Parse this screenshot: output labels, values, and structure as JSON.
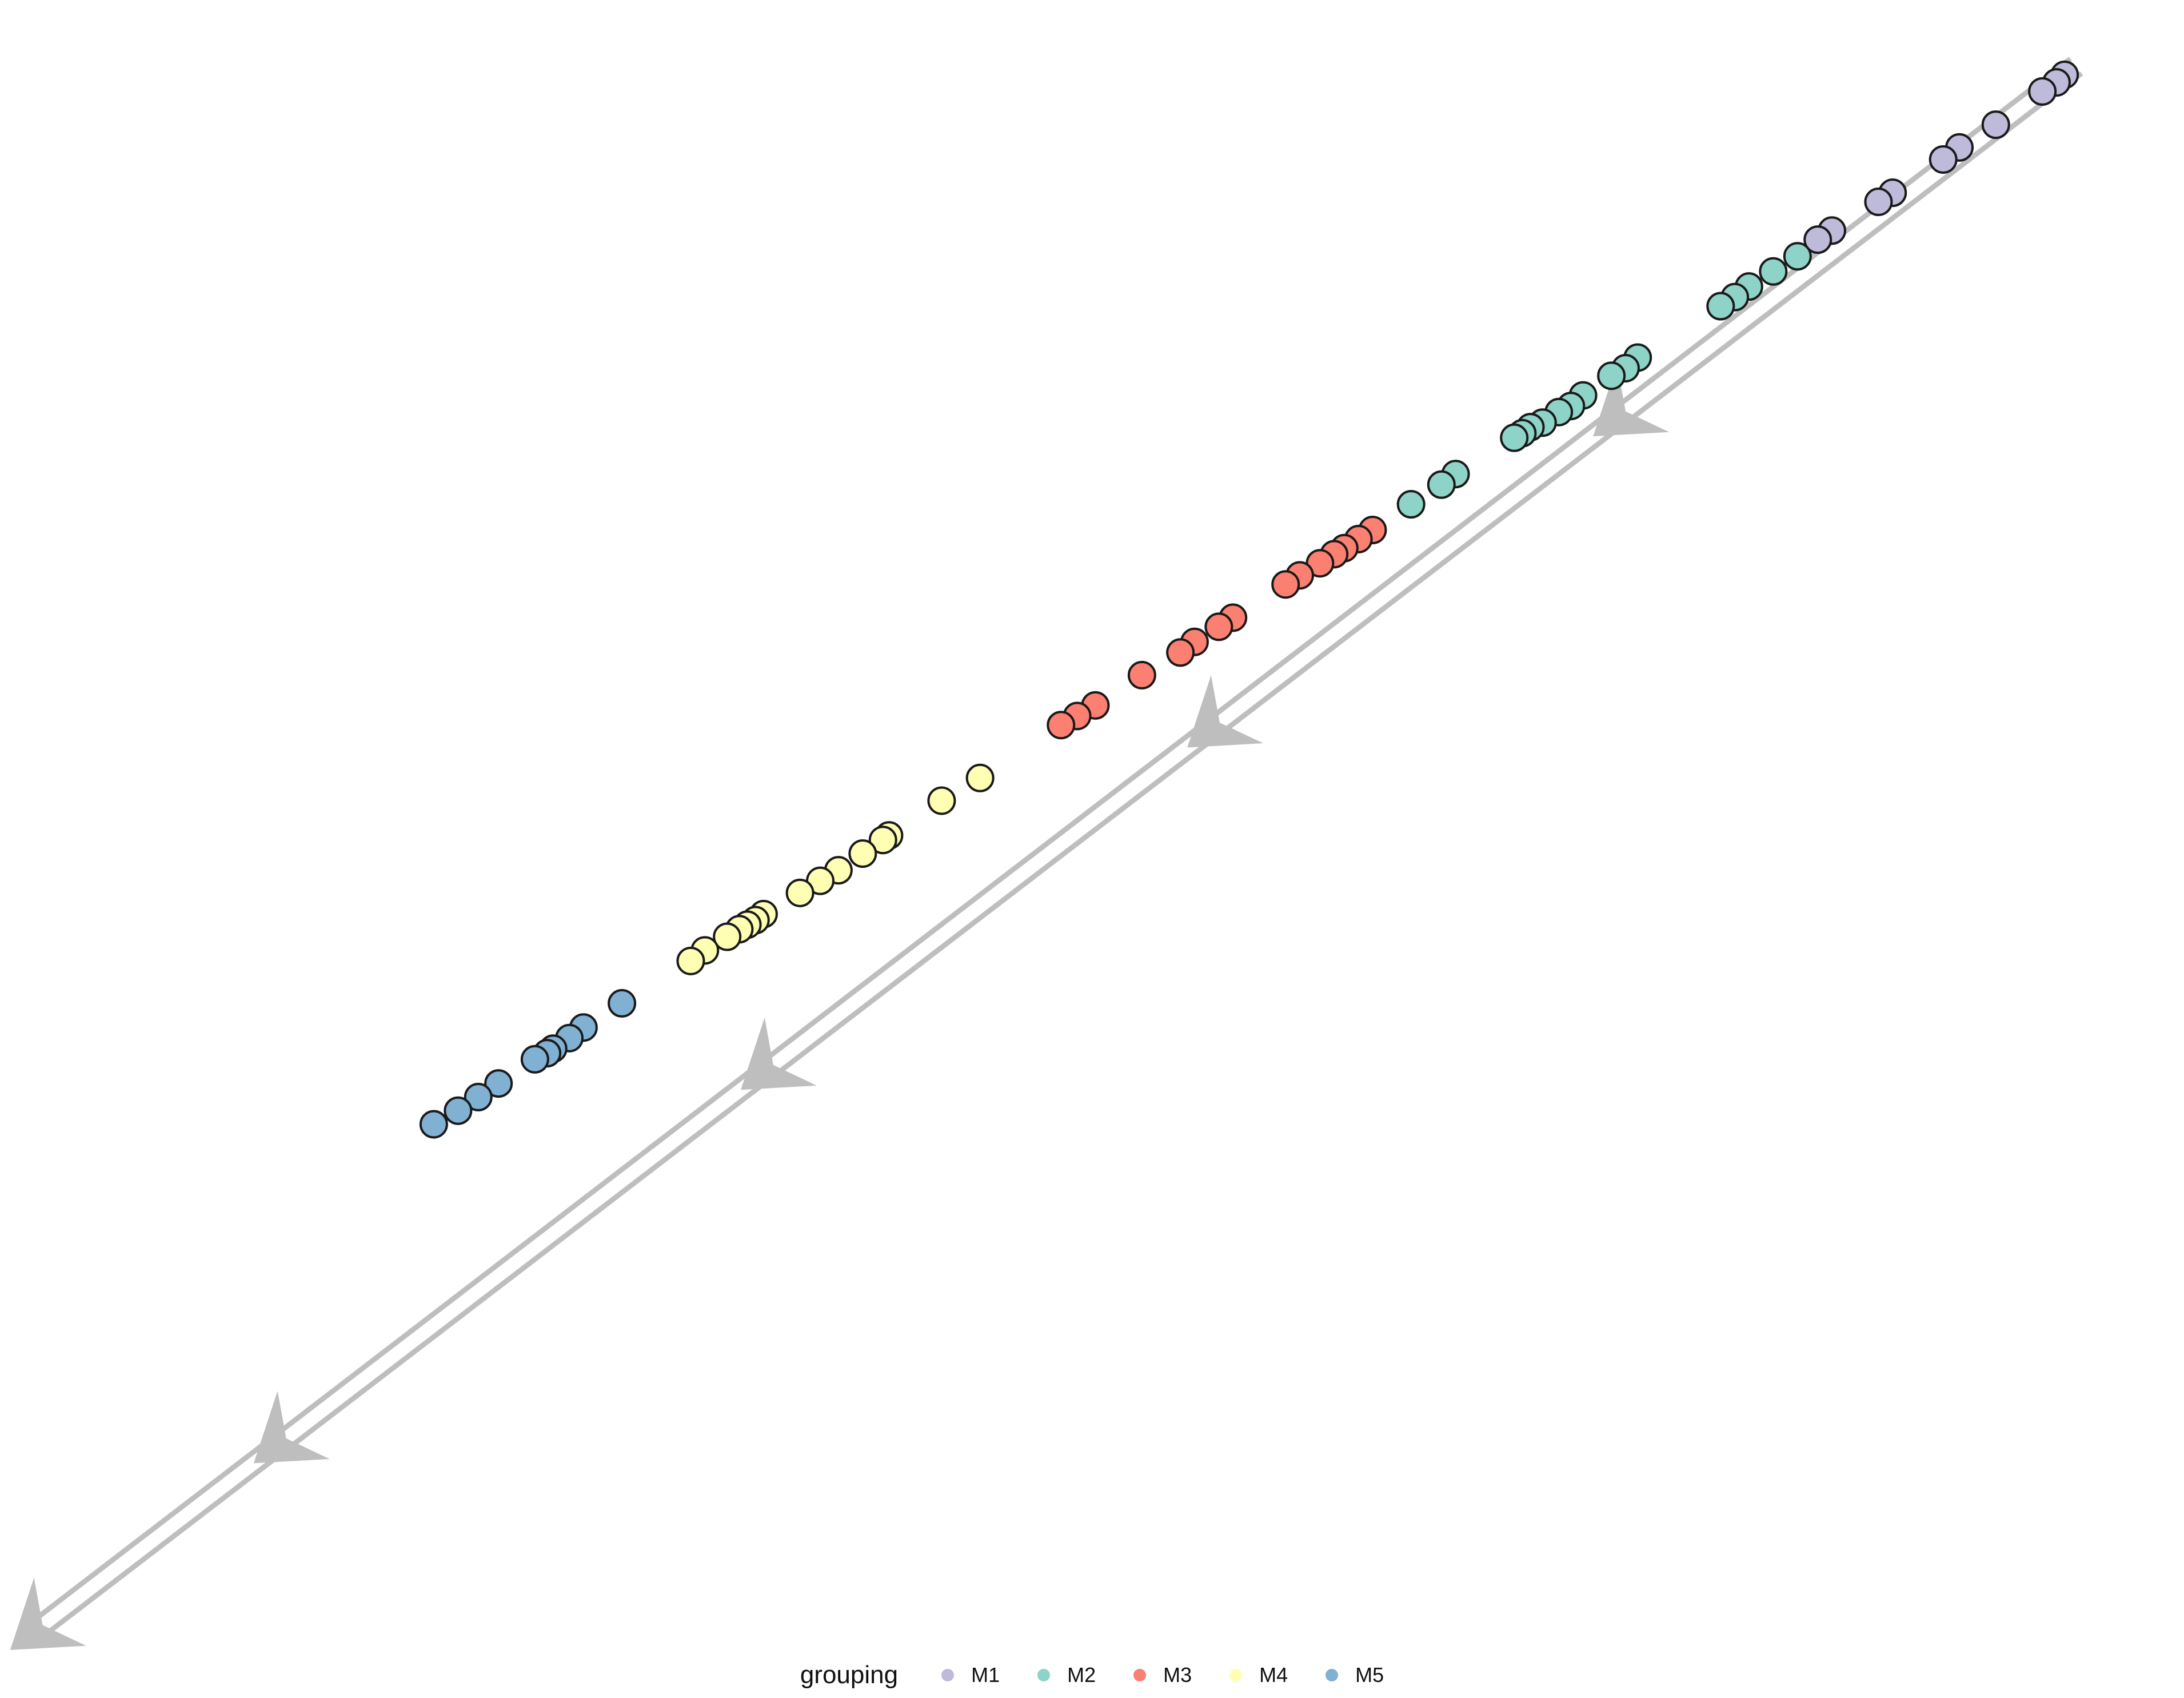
{
  "chart_data": {
    "type": "scatter",
    "title": "",
    "xlabel": "",
    "ylabel": "",
    "grid": false,
    "legend_position": "bottom",
    "legend": {
      "title": "grouping",
      "entries": [
        {
          "name": "M1",
          "color": "#BEBADA"
        },
        {
          "name": "M2",
          "color": "#8DD3C7"
        },
        {
          "name": "M3",
          "color": "#FB8072"
        },
        {
          "name": "M4",
          "color": "#FFFFB3"
        },
        {
          "name": "M5",
          "color": "#80B1D3"
        }
      ]
    },
    "trajectory": {
      "color": "#BEBEBE",
      "direction": "top-right to bottom-left",
      "arrow_positions": [
        0.22,
        0.42,
        0.64,
        0.88,
        1.0
      ]
    },
    "xlim": [
      0,
      1
    ],
    "ylim": [
      0,
      1
    ],
    "series": [
      {
        "name": "M1",
        "color": "#BEBADA",
        "points": [
          [
            0.978,
            0.994
          ],
          [
            0.974,
            0.989
          ],
          [
            0.967,
            0.983
          ],
          [
            0.944,
            0.961
          ],
          [
            0.926,
            0.946
          ],
          [
            0.918,
            0.938
          ],
          [
            0.893,
            0.916
          ],
          [
            0.886,
            0.91
          ],
          [
            0.863,
            0.891
          ],
          [
            0.856,
            0.885
          ]
        ]
      },
      {
        "name": "M2",
        "color": "#8DD3C7",
        "points": [
          [
            0.846,
            0.874
          ],
          [
            0.834,
            0.864
          ],
          [
            0.822,
            0.854
          ],
          [
            0.815,
            0.847
          ],
          [
            0.808,
            0.841
          ],
          [
            0.767,
            0.807
          ],
          [
            0.761,
            0.8
          ],
          [
            0.754,
            0.795
          ],
          [
            0.74,
            0.782
          ],
          [
            0.734,
            0.775
          ],
          [
            0.728,
            0.771
          ],
          [
            0.72,
            0.764
          ],
          [
            0.714,
            0.761
          ],
          [
            0.71,
            0.757
          ],
          [
            0.706,
            0.754
          ],
          [
            0.677,
            0.73
          ],
          [
            0.67,
            0.723
          ],
          [
            0.655,
            0.71
          ]
        ]
      },
      {
        "name": "M3",
        "color": "#FB8072",
        "points": [
          [
            0.636,
            0.693
          ],
          [
            0.629,
            0.687
          ],
          [
            0.622,
            0.681
          ],
          [
            0.617,
            0.677
          ],
          [
            0.61,
            0.671
          ],
          [
            0.6,
            0.663
          ],
          [
            0.593,
            0.657
          ],
          [
            0.567,
            0.635
          ],
          [
            0.56,
            0.629
          ],
          [
            0.548,
            0.619
          ],
          [
            0.541,
            0.612
          ],
          [
            0.522,
            0.597
          ],
          [
            0.499,
            0.577
          ],
          [
            0.49,
            0.57
          ],
          [
            0.482,
            0.564
          ]
        ]
      },
      {
        "name": "M4",
        "color": "#FFFFB3",
        "points": [
          [
            0.442,
            0.529
          ],
          [
            0.423,
            0.514
          ],
          [
            0.397,
            0.491
          ],
          [
            0.394,
            0.488
          ],
          [
            0.384,
            0.479
          ],
          [
            0.372,
            0.468
          ],
          [
            0.363,
            0.461
          ],
          [
            0.353,
            0.453
          ],
          [
            0.335,
            0.439
          ],
          [
            0.331,
            0.435
          ],
          [
            0.327,
            0.432
          ],
          [
            0.323,
            0.429
          ],
          [
            0.317,
            0.424
          ],
          [
            0.306,
            0.415
          ],
          [
            0.299,
            0.408
          ]
        ]
      },
      {
        "name": "M5",
        "color": "#80B1D3",
        "points": [
          [
            0.265,
            0.38
          ],
          [
            0.246,
            0.364
          ],
          [
            0.239,
            0.357
          ],
          [
            0.231,
            0.35
          ],
          [
            0.228,
            0.347
          ],
          [
            0.222,
            0.343
          ],
          [
            0.204,
            0.327
          ],
          [
            0.194,
            0.318
          ],
          [
            0.184,
            0.309
          ],
          [
            0.172,
            0.3
          ]
        ]
      }
    ]
  }
}
